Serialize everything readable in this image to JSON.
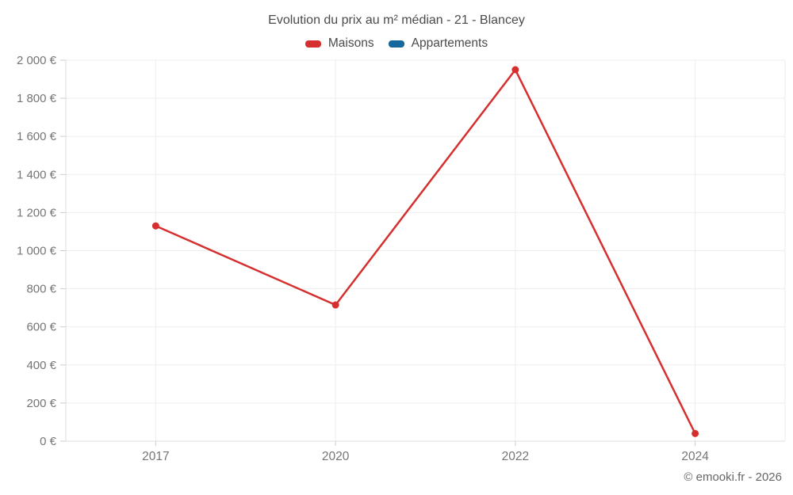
{
  "title": "Evolution du prix au m² médian - 21 - Blancey",
  "legend": [
    {
      "label": "Maisons",
      "color": "#d5302f"
    },
    {
      "label": "Appartements",
      "color": "#15689e"
    }
  ],
  "footer": "© emooki.fr - 2026",
  "colors": {
    "grid": "#eeeeee",
    "axis": "#dddddd",
    "tick": "#cccccc",
    "axis_label": "#757575",
    "title_text": "#4a4a4a"
  },
  "chart_data": {
    "type": "line",
    "title": "Evolution du prix au m² médian - 21 - Blancey",
    "x": [
      "2017",
      "2020",
      "2022",
      "2024"
    ],
    "series": [
      {
        "name": "Maisons",
        "color": "#d5302f",
        "values": [
          1130,
          715,
          1950,
          40
        ]
      },
      {
        "name": "Appartements",
        "color": "#15689e",
        "values": []
      }
    ],
    "xlabel": "",
    "ylabel": "",
    "ylim": [
      0,
      2000
    ],
    "ytick_step": 200,
    "ytick_suffix": " €",
    "grid": true,
    "legend_position": "top"
  }
}
